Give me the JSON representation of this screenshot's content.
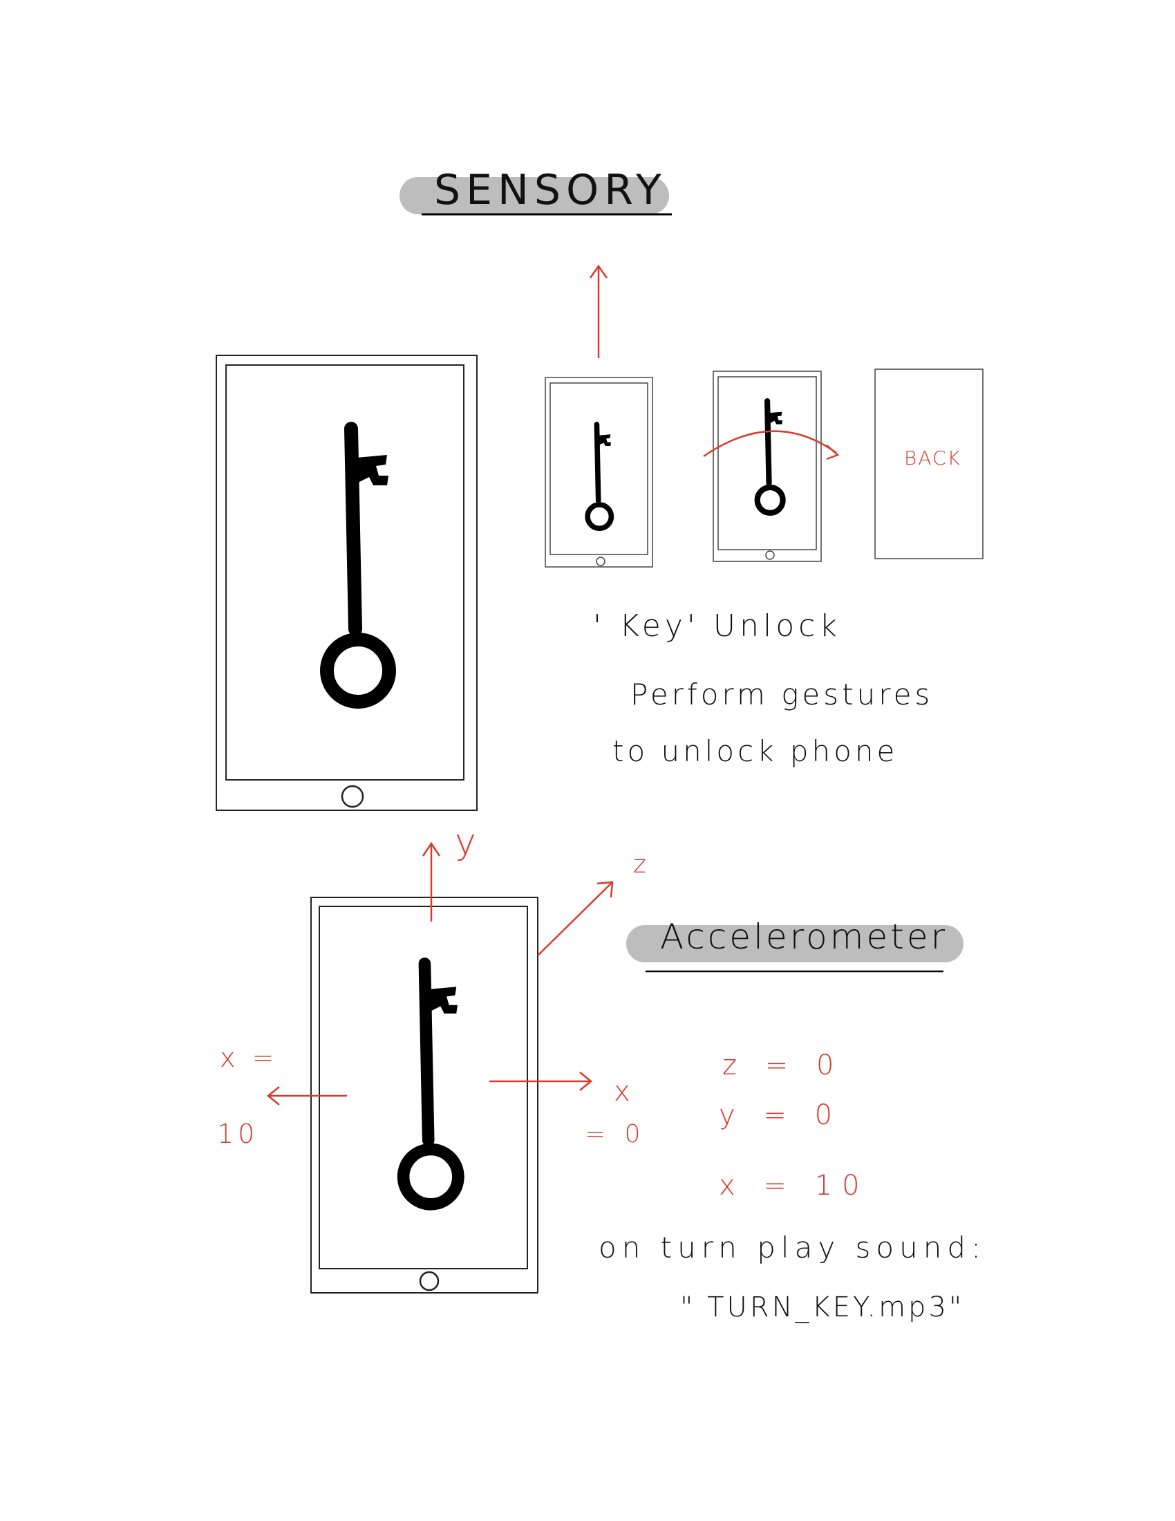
{
  "sensory": {
    "title": "SENSORY"
  },
  "key_unlock": {
    "heading": "' Key' Unlock",
    "line1": "Perform gestures",
    "line2": "to unlock phone"
  },
  "steps": {
    "back_label": "BACK"
  },
  "accelerometer": {
    "title": "Accelerometer",
    "axis_y": "y",
    "axis_z": "z",
    "axis_x_left": "x =",
    "axis_x_left_value": "10",
    "axis_x_right": "x",
    "axis_x_right_value": "= 0",
    "readout": {
      "z": "z = 0",
      "y": "y = 0",
      "x": "x = 10"
    },
    "sound_line1": "on turn play sound:",
    "sound_line2": "\" TURN_KEY.mp3\""
  },
  "colors": {
    "ink": "#111111",
    "accent": "#d93a2b",
    "pill": "#bdbdbd"
  }
}
